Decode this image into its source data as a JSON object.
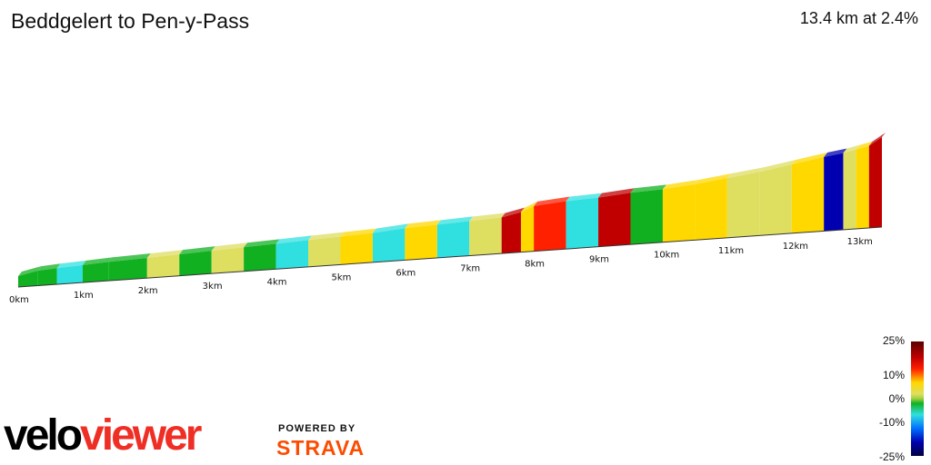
{
  "header": {
    "title": "Beddgelert to Pen-y-Pass",
    "summary": "13.4 km at 2.4%"
  },
  "chart_data": {
    "type": "area",
    "title": "Beddgelert to Pen-y-Pass",
    "xlabel": "",
    "ylabel": "",
    "xlim": [
      0,
      13.4
    ],
    "x_tick_labels": [
      "0km",
      "1km",
      "2km",
      "3km",
      "4km",
      "5km",
      "6km",
      "7km",
      "8km",
      "9km",
      "10km",
      "11km",
      "12km",
      "13km"
    ],
    "x_ticks": [
      0,
      1,
      2,
      3,
      4,
      5,
      6,
      7,
      8,
      9,
      10,
      11,
      12,
      13
    ],
    "distance_km": [
      0,
      0.3,
      0.6,
      1.0,
      1.4,
      2.0,
      2.5,
      3.0,
      3.5,
      4.0,
      4.5,
      5.0,
      5.5,
      6.0,
      6.5,
      7.0,
      7.5,
      7.8,
      8.0,
      8.5,
      9.0,
      9.5,
      10.0,
      10.5,
      11.0,
      11.5,
      12.0,
      12.5,
      12.8,
      13.0,
      13.2,
      13.4
    ],
    "gradient_pct": [
      3,
      0,
      1,
      -2,
      1,
      0,
      2,
      -1,
      3,
      1,
      -3,
      2,
      4,
      -5,
      6,
      -6,
      3,
      12,
      5,
      8,
      -2,
      16,
      1,
      5,
      4,
      3,
      2,
      5,
      -15,
      3,
      6,
      20
    ],
    "relative_height": [
      0,
      3,
      4,
      5,
      6,
      7,
      8,
      9,
      10,
      11,
      12,
      13,
      14,
      16,
      17,
      18,
      19,
      22,
      26,
      28,
      29,
      31,
      32,
      34,
      37,
      40,
      44,
      48,
      50,
      52,
      54,
      60
    ],
    "color_scale": {
      "labels": [
        "25%",
        "10%",
        "0%",
        "-10%",
        "-25%"
      ],
      "values": [
        25,
        10,
        0,
        -10,
        -25
      ]
    },
    "palette": {
      "steep_up": "#c00000",
      "up": "#ff2000",
      "moderate": "#ffd800",
      "gentle": "#dede60",
      "flat": "#10b020",
      "down": "#30e0e0",
      "steep_down": "#0000b0"
    }
  },
  "branding": {
    "logo_part1": "velo",
    "logo_part2": "viewer",
    "powered_by": "POWERED BY",
    "strava": "STRAVA"
  }
}
